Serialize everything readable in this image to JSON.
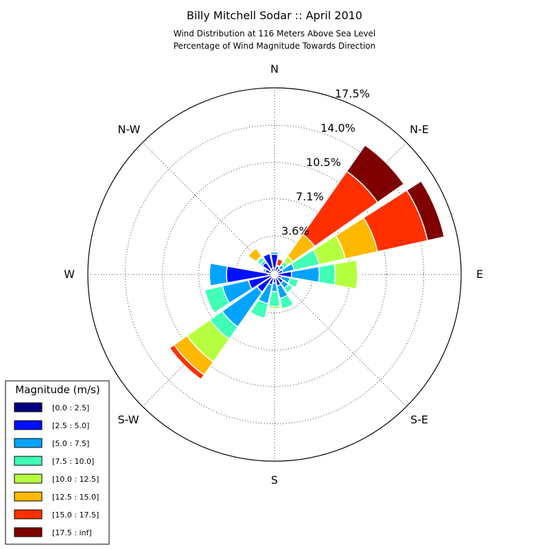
{
  "chart_data": {
    "type": "windrose",
    "title": "Billy Mitchell Sodar :: April 2010",
    "subtitle_lines": [
      "Wind Distribution at 116 Meters Above Sea Level",
      "Percentage of Wind Magnitude Towards Direction"
    ],
    "direction_labels": [
      "N",
      "N-E",
      "E",
      "S-E",
      "S",
      "S-W",
      "W",
      "N-W"
    ],
    "radial_ticks": [
      3.6,
      7.1,
      10.5,
      14.0,
      17.5
    ],
    "radial_tick_labels": [
      "3.6%",
      "7.1%",
      "10.5%",
      "14.0%",
      "17.5%"
    ],
    "rmax": 17.5,
    "grid": true,
    "legend": {
      "title": "Magnitude (m/s)",
      "placement": "bottom-left",
      "bins": [
        {
          "label": "[0.0 : 2.5]",
          "color": "#00007f"
        },
        {
          "label": "[2.5 : 5.0]",
          "color": "#0010ff"
        },
        {
          "label": "[5.0 : 7.5]",
          "color": "#00a4ff"
        },
        {
          "label": "[7.5 : 10.0]",
          "color": "#40ffb6"
        },
        {
          "label": "[10.0 : 12.5]",
          "color": "#b6ff40"
        },
        {
          "label": "[12.5 : 15.0]",
          "color": "#ffb900"
        },
        {
          "label": "[15.0 : 17.5]",
          "color": "#ff3000"
        },
        {
          "label": "[17.5 : inf]",
          "color": "#7f0000"
        }
      ]
    },
    "sectors": [
      {
        "direction_deg": 0,
        "cumulative": [
          0.6,
          1.9,
          2.1,
          2.1,
          2.1,
          2.1,
          2.1,
          2.1
        ]
      },
      {
        "direction_deg": 22.5,
        "cumulative": [
          0.3,
          0.8,
          0.8,
          0.9,
          0.9,
          0.9,
          1.5,
          1.5
        ]
      },
      {
        "direction_deg": 45,
        "cumulative": [
          0.3,
          0.7,
          1.1,
          1.5,
          2.1,
          4.6,
          11.8,
          14.8
        ]
      },
      {
        "direction_deg": 67.5,
        "cumulative": [
          0.3,
          0.8,
          1.9,
          4.3,
          6.8,
          9.9,
          14.7,
          16.3
        ]
      },
      {
        "direction_deg": 90,
        "cumulative": [
          0.3,
          1.6,
          4.2,
          5.7,
          7.8,
          7.9,
          8.0,
          8.0
        ]
      },
      {
        "direction_deg": 112.5,
        "cumulative": [
          0.3,
          0.7,
          1.5,
          2.3,
          2.4,
          2.4,
          2.4,
          2.4
        ]
      },
      {
        "direction_deg": 135,
        "cumulative": [
          0.3,
          1.0,
          1.6,
          2.1,
          2.2,
          2.2,
          2.2,
          2.2
        ]
      },
      {
        "direction_deg": 157.5,
        "cumulative": [
          0.3,
          1.1,
          2.3,
          3.3,
          3.4,
          3.4,
          3.4,
          3.4
        ]
      },
      {
        "direction_deg": 180,
        "cumulative": [
          0.3,
          0.8,
          1.6,
          3.0,
          3.2,
          3.2,
          3.2,
          3.2
        ]
      },
      {
        "direction_deg": 202.5,
        "cumulative": [
          0.3,
          1.0,
          2.8,
          4.2,
          4.2,
          4.2,
          4.2,
          4.2
        ]
      },
      {
        "direction_deg": 225,
        "cumulative": [
          0.3,
          2.0,
          6.0,
          7.4,
          10.0,
          11.5,
          12.0,
          12.0
        ]
      },
      {
        "direction_deg": 247.5,
        "cumulative": [
          0.3,
          2.5,
          5.0,
          6.7,
          6.7,
          6.7,
          6.7,
          6.7
        ]
      },
      {
        "direction_deg": 270,
        "cumulative": [
          0.6,
          4.5,
          6.1,
          6.1,
          6.1,
          6.1,
          6.1,
          6.1
        ]
      },
      {
        "direction_deg": 292.5,
        "cumulative": [
          0.3,
          0.9,
          1.1,
          1.2,
          1.2,
          1.2,
          1.2,
          1.2
        ]
      },
      {
        "direction_deg": 315,
        "cumulative": [
          0.5,
          1.4,
          1.6,
          2.0,
          2.1,
          3.0,
          3.0,
          3.0
        ]
      },
      {
        "direction_deg": 337.5,
        "cumulative": [
          0.6,
          2.0,
          2.1,
          2.1,
          2.1,
          2.1,
          2.1,
          2.1
        ]
      }
    ]
  }
}
